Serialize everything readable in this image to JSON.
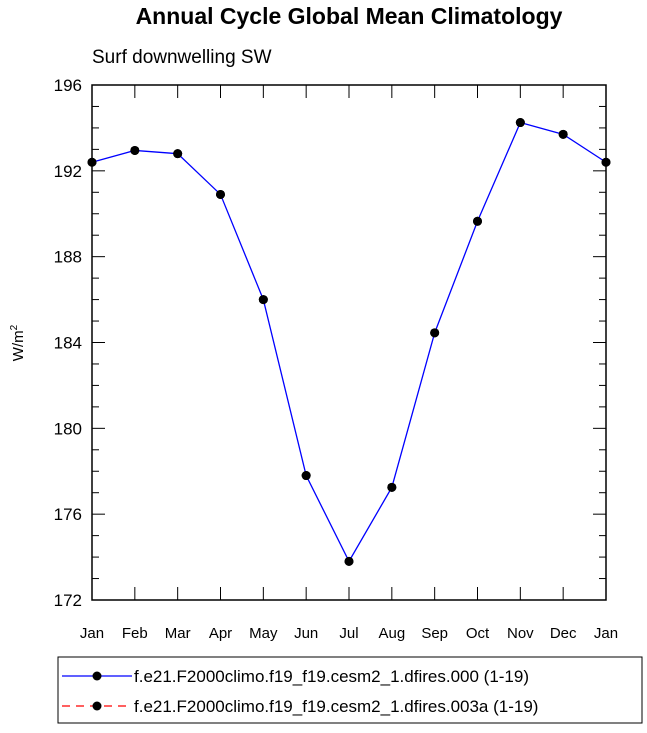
{
  "chart_data": {
    "type": "line",
    "title": "Annual Cycle Global Mean Climatology",
    "subtitle": "Surf downwelling SW",
    "xlabel": "",
    "ylabel": "W/m",
    "ylabel_superscript": "2",
    "ylim": [
      172,
      196
    ],
    "yticks": [
      172,
      176,
      180,
      184,
      188,
      192,
      196
    ],
    "y_minor_step": 1,
    "categories": [
      "Jan",
      "Feb",
      "Mar",
      "Apr",
      "May",
      "Jun",
      "Jul",
      "Aug",
      "Sep",
      "Oct",
      "Nov",
      "Dec",
      "Jan"
    ],
    "series": [
      {
        "name": "f.e21.F2000climo.f19_f19.cesm2_1.dfires.000 (1-19)",
        "color": "#0000ff",
        "line_style": "solid",
        "marker": "filled-circle",
        "values": [
          192.4,
          192.95,
          192.8,
          190.9,
          186.0,
          177.8,
          173.8,
          177.25,
          184.45,
          189.65,
          194.25,
          193.7,
          192.4
        ]
      },
      {
        "name": "f.e21.F2000climo.f19_f19.cesm2_1.dfires.003a (1-19)",
        "color": "#ff0000",
        "line_style": "dashed",
        "marker": "filled-circle",
        "values": [
          192.4,
          192.95,
          192.8,
          190.9,
          186.0,
          177.8,
          173.8,
          177.25,
          184.45,
          189.65,
          194.25,
          193.7,
          192.4
        ]
      }
    ],
    "grid": false,
    "legend_position": "bottom"
  }
}
